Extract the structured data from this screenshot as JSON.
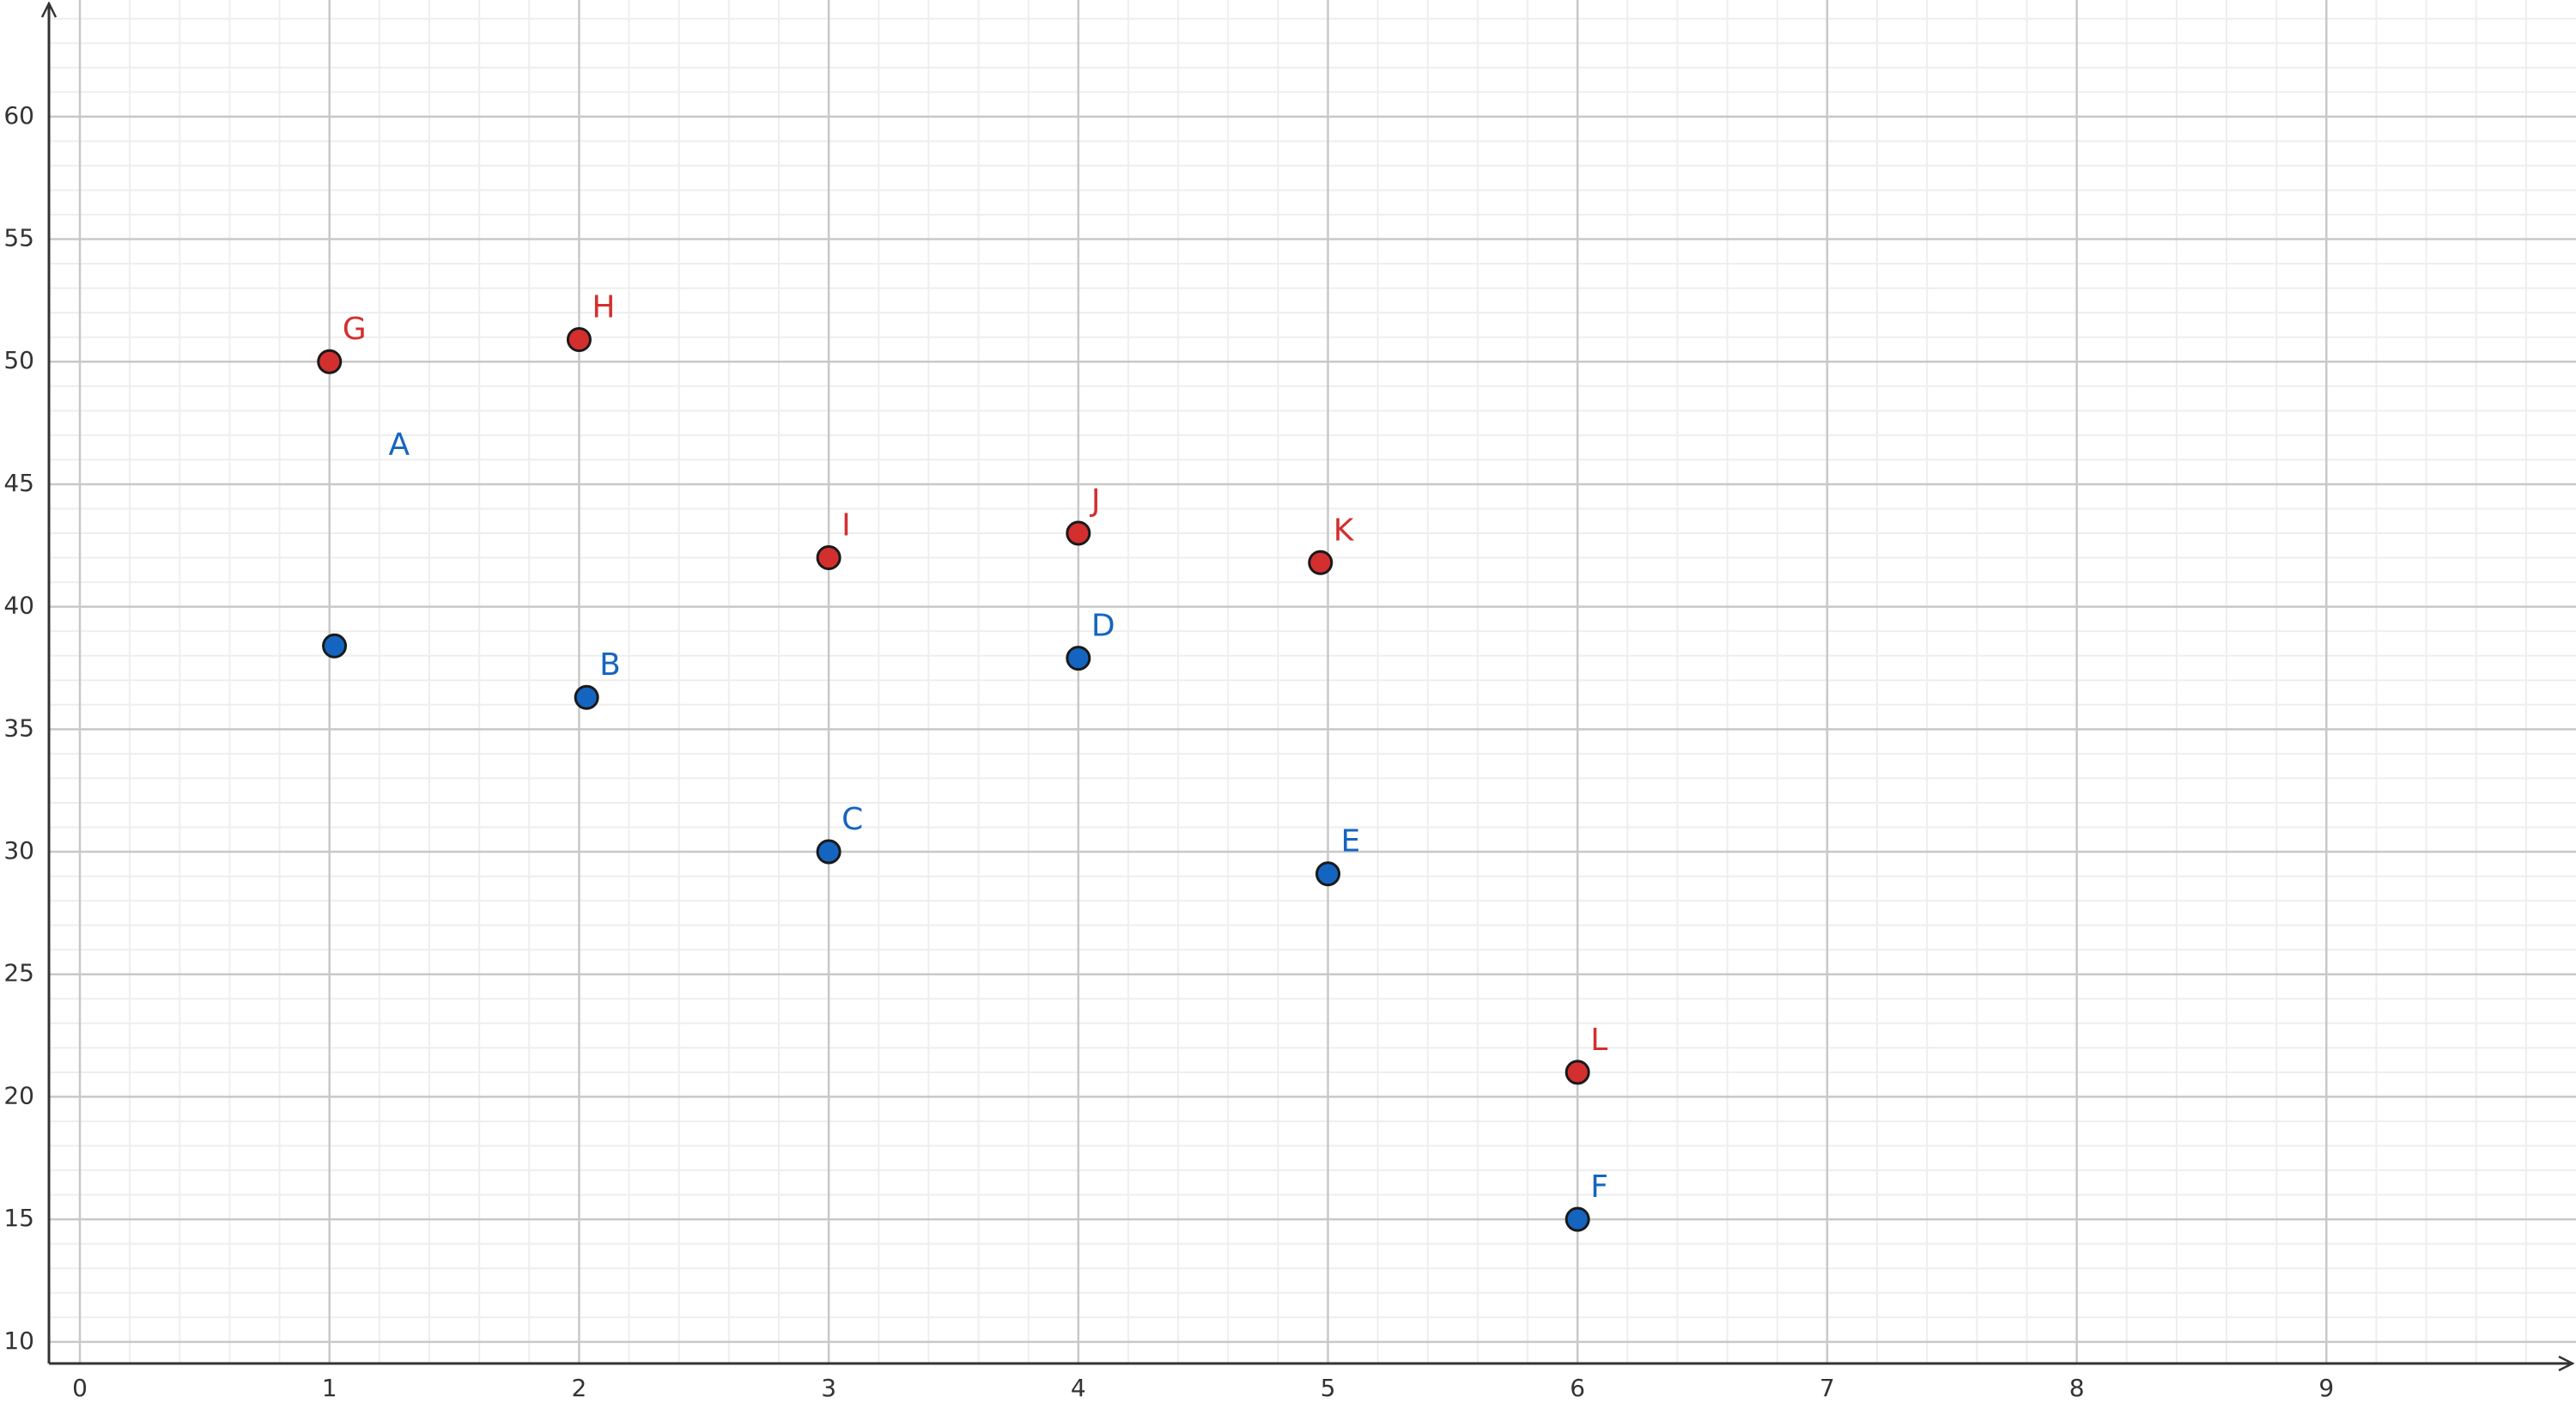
{
  "chart_data": {
    "type": "scatter",
    "xlim": [
      -0.32,
      10
    ],
    "ylim": [
      6.77,
      64.76
    ],
    "xticks": [
      0,
      1,
      2,
      3,
      4,
      5,
      6,
      7,
      8,
      9
    ],
    "yticks": [
      10,
      15,
      20,
      25,
      30,
      35,
      40,
      45,
      50,
      55,
      60
    ],
    "grid": true,
    "minor_grid": true,
    "series": [
      {
        "color": "#1565c0",
        "labels": [
          "A",
          "B",
          "C",
          "D",
          "E",
          "F"
        ],
        "x": [
          1.02,
          2.03,
          3,
          4,
          5,
          6
        ],
        "values": [
          38.4,
          36.3,
          30,
          37.9,
          29.1,
          15
        ]
      },
      {
        "color": "#d32f2f",
        "labels": [
          "G",
          "H",
          "I",
          "J",
          "K",
          "L"
        ],
        "x": [
          1,
          2,
          3,
          4,
          4.97,
          6
        ],
        "values": [
          50,
          50.9,
          42,
          43,
          41.8,
          21
        ]
      }
    ]
  }
}
